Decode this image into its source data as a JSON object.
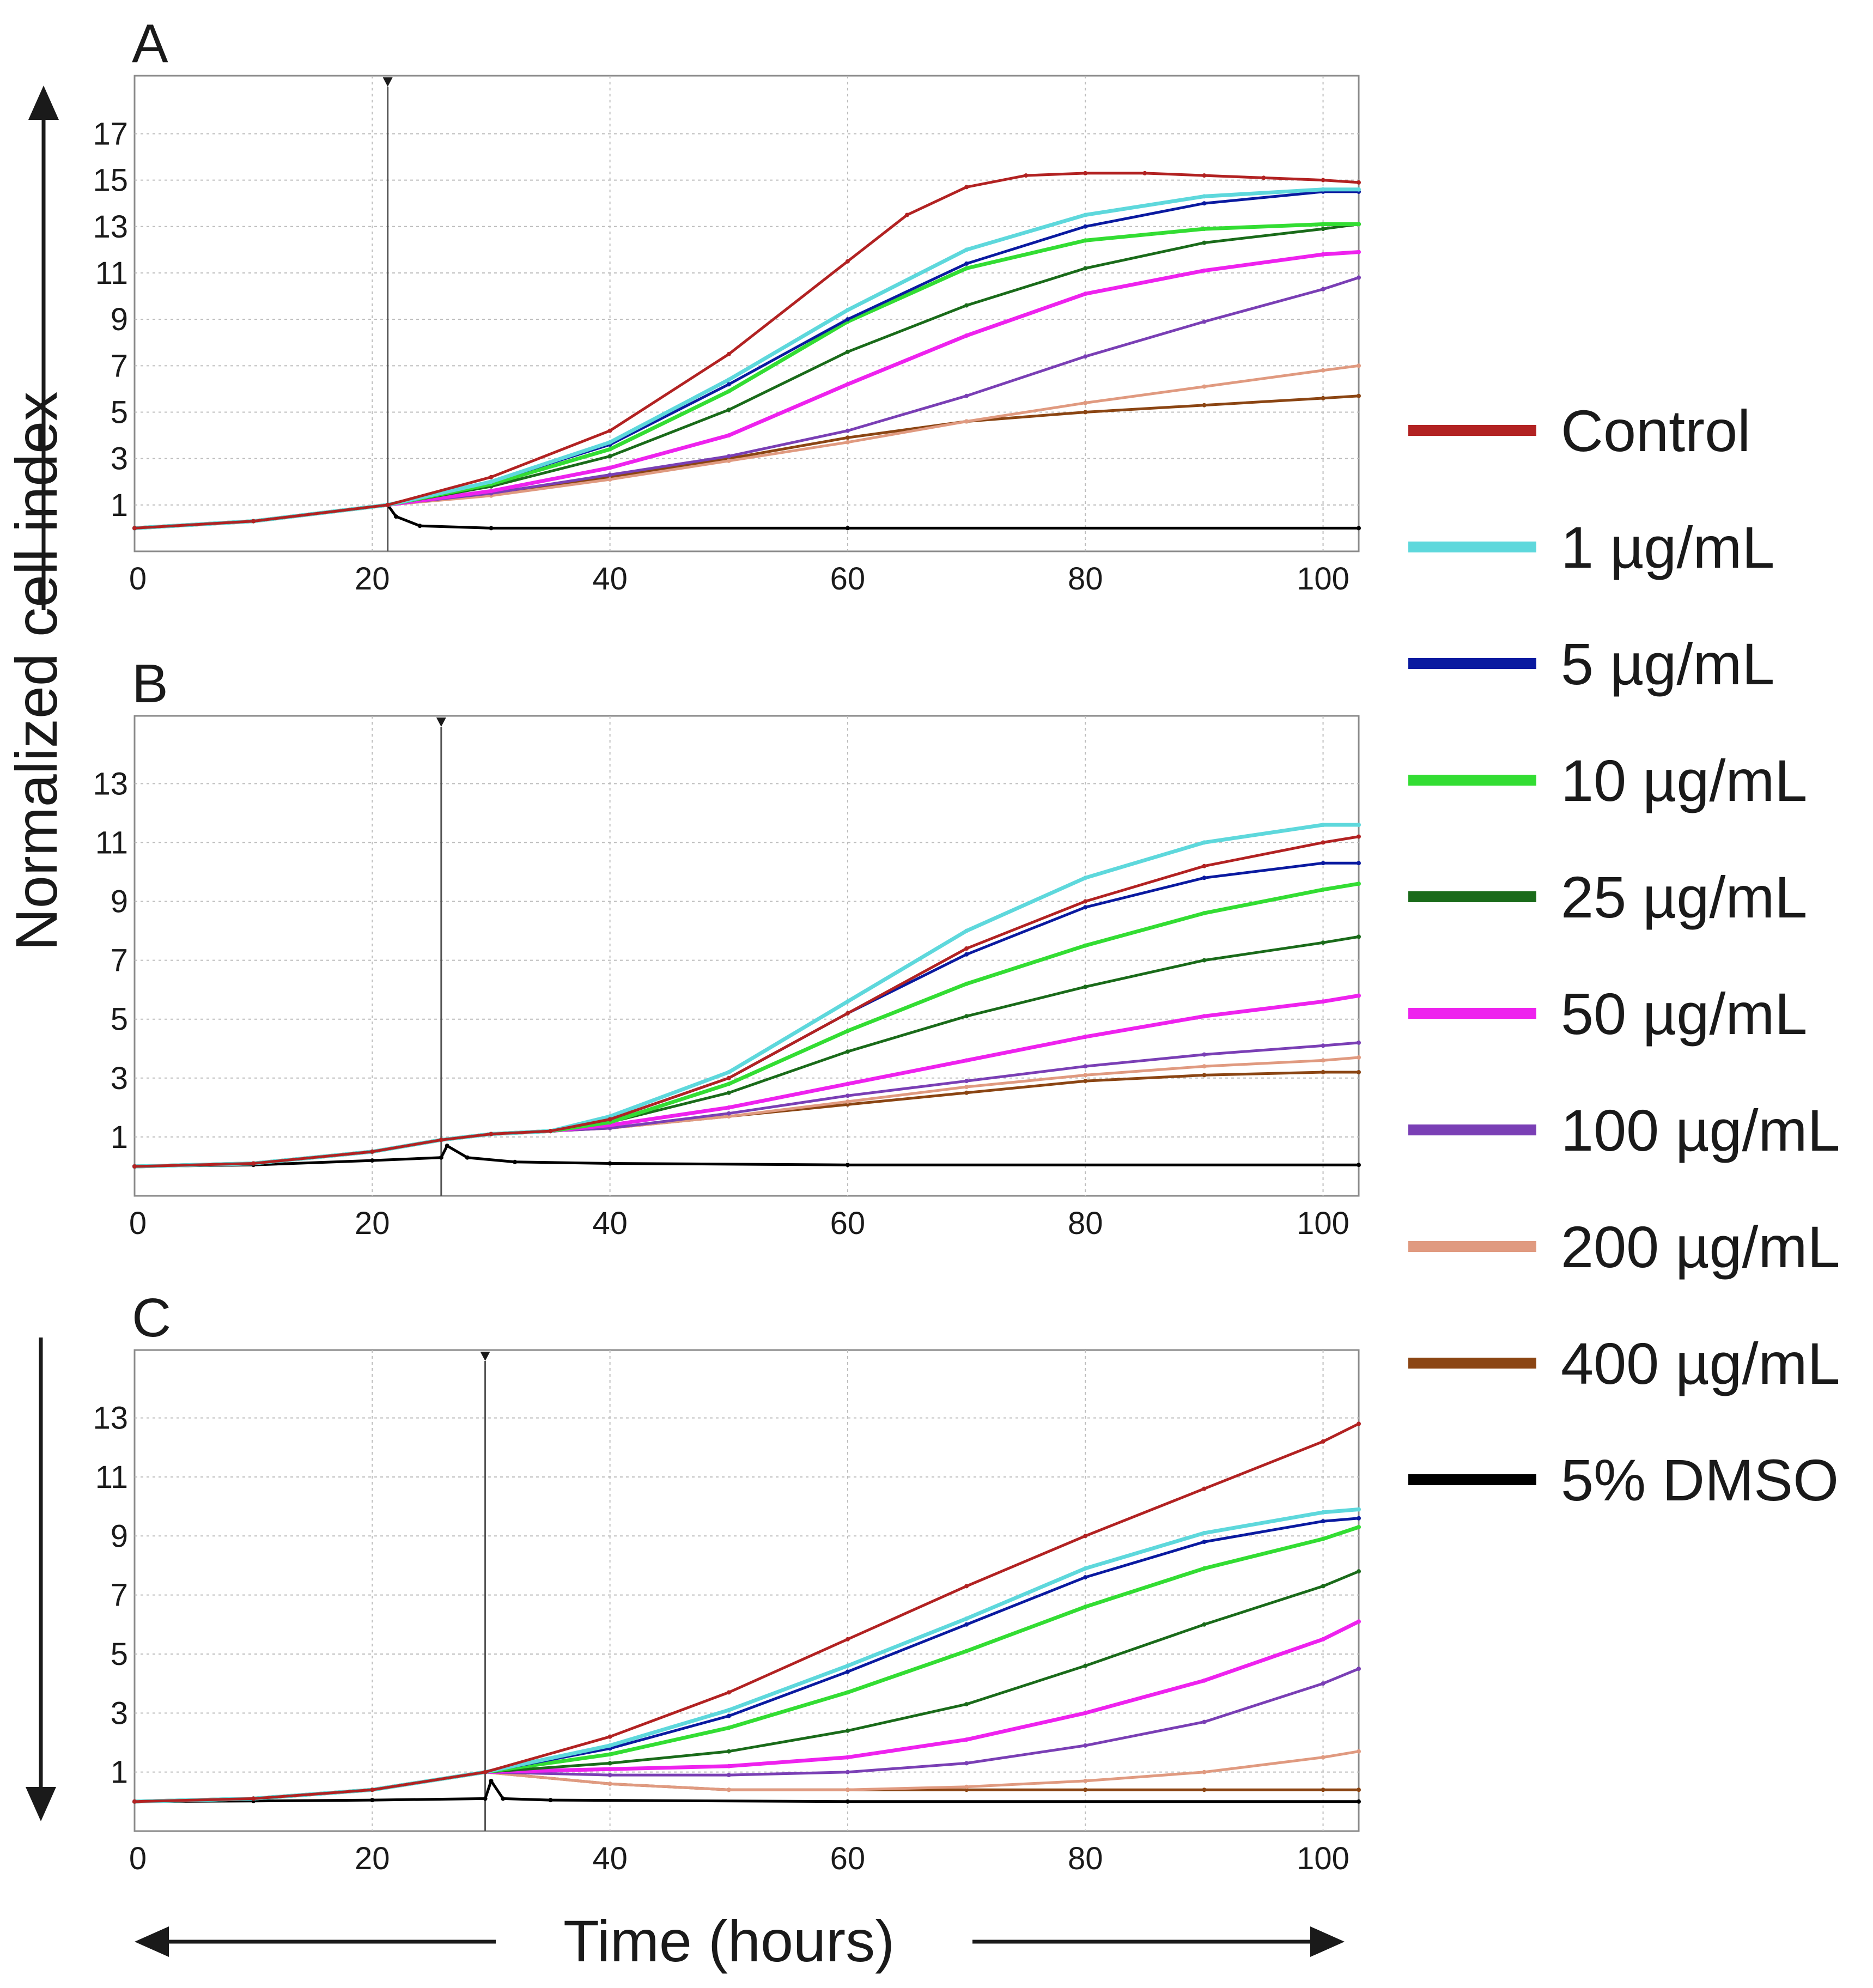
{
  "figure": {
    "ylabel": "Normalized cell index",
    "xlabel": "Time (hours)",
    "colors": {
      "control": "#b22222",
      "c1": "#5ed8dc",
      "c5": "#0a1aa0",
      "c10": "#33dd33",
      "c25": "#1a6b1a",
      "c50": "#ee22ee",
      "c100": "#7a3fb5",
      "c200": "#e09a80",
      "c400": "#8b4513",
      "dmso": "#000000"
    }
  },
  "legend": [
    {
      "key": "control",
      "label": "Control"
    },
    {
      "key": "c1",
      "label": "1 µg/mL"
    },
    {
      "key": "c5",
      "label": "5 µg/mL"
    },
    {
      "key": "c10",
      "label": "10 µg/mL"
    },
    {
      "key": "c25",
      "label": "25 µg/mL"
    },
    {
      "key": "c50",
      "label": "50 µg/mL"
    },
    {
      "key": "c100",
      "label": "100 µg/mL"
    },
    {
      "key": "c200",
      "label": "200 µg/mL"
    },
    {
      "key": "c400",
      "label": "400 µg/mL"
    },
    {
      "key": "dmso",
      "label": "5% DMSO"
    }
  ],
  "chart_data": [
    {
      "panel": "A",
      "type": "line",
      "title": "A",
      "xlabel": "Time (hours)",
      "ylabel": "Normalized cell index",
      "xlim": [
        0,
        103
      ],
      "ylim": [
        -1,
        19.5
      ],
      "xticks": [
        0,
        20,
        40,
        60,
        80,
        100
      ],
      "yticks": [
        1,
        3,
        5,
        7,
        9,
        11,
        13,
        15,
        17
      ],
      "treatment_time": 21.3,
      "grid": true,
      "series": [
        {
          "key": "control",
          "name": "Control",
          "x": [
            0,
            10,
            21.3,
            30,
            40,
            50,
            60,
            65,
            70,
            75,
            80,
            85,
            90,
            95,
            100,
            103
          ],
          "y": [
            0,
            0.3,
            1,
            2.2,
            4.2,
            7.5,
            11.5,
            13.5,
            14.7,
            15.2,
            15.3,
            15.3,
            15.2,
            15.1,
            15.0,
            14.9
          ]
        },
        {
          "key": "c1",
          "name": "1 µg/mL",
          "x": [
            0,
            10,
            21.3,
            30,
            40,
            50,
            60,
            70,
            80,
            90,
            100,
            103
          ],
          "y": [
            0,
            0.3,
            1,
            2,
            3.7,
            6.4,
            9.4,
            12,
            13.5,
            14.3,
            14.6,
            14.6
          ]
        },
        {
          "key": "c5",
          "name": "5 µg/mL",
          "x": [
            0,
            10,
            21.3,
            30,
            40,
            50,
            60,
            70,
            80,
            90,
            100,
            103
          ],
          "y": [
            0,
            0.3,
            1,
            2,
            3.6,
            6.2,
            9.0,
            11.4,
            13.0,
            14.0,
            14.5,
            14.5
          ]
        },
        {
          "key": "c10",
          "name": "10 µg/mL",
          "x": [
            0,
            10,
            21.3,
            30,
            40,
            50,
            60,
            70,
            80,
            90,
            100,
            103
          ],
          "y": [
            0,
            0.3,
            1,
            1.9,
            3.4,
            5.9,
            8.9,
            11.2,
            12.4,
            12.9,
            13.1,
            13.1
          ]
        },
        {
          "key": "c25",
          "name": "25 µg/mL",
          "x": [
            0,
            10,
            21.3,
            30,
            40,
            50,
            60,
            70,
            80,
            90,
            100,
            103
          ],
          "y": [
            0,
            0.3,
            1,
            1.8,
            3.1,
            5.1,
            7.6,
            9.6,
            11.2,
            12.3,
            12.9,
            13.1
          ]
        },
        {
          "key": "c50",
          "name": "50 µg/mL",
          "x": [
            0,
            10,
            21.3,
            30,
            40,
            50,
            60,
            70,
            80,
            90,
            100,
            103
          ],
          "y": [
            0,
            0.3,
            1,
            1.6,
            2.6,
            4.0,
            6.2,
            8.3,
            10.1,
            11.1,
            11.8,
            11.9
          ]
        },
        {
          "key": "c100",
          "name": "100 µg/mL",
          "x": [
            0,
            10,
            21.3,
            30,
            40,
            50,
            60,
            70,
            80,
            90,
            100,
            103
          ],
          "y": [
            0,
            0.3,
            1,
            1.5,
            2.3,
            3.1,
            4.2,
            5.7,
            7.4,
            8.9,
            10.3,
            10.8
          ]
        },
        {
          "key": "c200",
          "name": "200 µg/mL",
          "x": [
            0,
            10,
            21.3,
            30,
            40,
            50,
            60,
            70,
            80,
            90,
            100,
            103
          ],
          "y": [
            0,
            0.3,
            1,
            1.4,
            2.1,
            2.9,
            3.7,
            4.6,
            5.4,
            6.1,
            6.8,
            7.0
          ]
        },
        {
          "key": "c400",
          "name": "400 µg/mL",
          "x": [
            0,
            10,
            21.3,
            30,
            40,
            50,
            60,
            70,
            80,
            90,
            100,
            103
          ],
          "y": [
            0,
            0.3,
            1,
            1.5,
            2.2,
            3.0,
            3.9,
            4.6,
            5.0,
            5.3,
            5.6,
            5.7
          ]
        },
        {
          "key": "dmso",
          "name": "5% DMSO",
          "x": [
            0,
            10,
            21.3,
            22,
            24,
            30,
            60,
            103
          ],
          "y": [
            0,
            0.3,
            1,
            0.5,
            0.1,
            0,
            0,
            0
          ]
        }
      ]
    },
    {
      "panel": "B",
      "type": "line",
      "title": "B",
      "xlabel": "Time (hours)",
      "ylabel": "Normalized cell index",
      "xlim": [
        0,
        103
      ],
      "ylim": [
        -1,
        15.3
      ],
      "xticks": [
        0,
        20,
        40,
        60,
        80,
        100
      ],
      "yticks": [
        1,
        3,
        5,
        7,
        9,
        11,
        13
      ],
      "treatment_time": 25.8,
      "grid": true,
      "series": [
        {
          "key": "control",
          "name": "Control",
          "x": [
            0,
            10,
            20,
            25.8,
            30,
            35,
            40,
            50,
            60,
            70,
            80,
            90,
            100,
            103
          ],
          "y": [
            0,
            0.1,
            0.5,
            0.9,
            1.1,
            1.2,
            1.6,
            3.0,
            5.2,
            7.4,
            9.0,
            10.2,
            11.0,
            11.2
          ]
        },
        {
          "key": "c1",
          "name": "1 µg/mL",
          "x": [
            0,
            10,
            20,
            25.8,
            30,
            35,
            40,
            50,
            60,
            70,
            80,
            90,
            100,
            103
          ],
          "y": [
            0,
            0.1,
            0.5,
            0.9,
            1.1,
            1.2,
            1.7,
            3.2,
            5.6,
            8.0,
            9.8,
            11.0,
            11.6,
            11.6
          ]
        },
        {
          "key": "c5",
          "name": "5 µg/mL",
          "x": [
            0,
            10,
            20,
            25.8,
            30,
            35,
            40,
            50,
            60,
            70,
            80,
            90,
            100,
            103
          ],
          "y": [
            0,
            0.1,
            0.5,
            0.9,
            1.1,
            1.2,
            1.6,
            3.0,
            5.2,
            7.2,
            8.8,
            9.8,
            10.3,
            10.3
          ]
        },
        {
          "key": "c10",
          "name": "10 µg/mL",
          "x": [
            0,
            10,
            20,
            25.8,
            30,
            35,
            40,
            50,
            60,
            70,
            80,
            90,
            100,
            103
          ],
          "y": [
            0,
            0.1,
            0.5,
            0.9,
            1.1,
            1.2,
            1.5,
            2.8,
            4.6,
            6.2,
            7.5,
            8.6,
            9.4,
            9.6
          ]
        },
        {
          "key": "c25",
          "name": "25 µg/mL",
          "x": [
            0,
            10,
            20,
            25.8,
            30,
            35,
            40,
            50,
            60,
            70,
            80,
            90,
            100,
            103
          ],
          "y": [
            0,
            0.1,
            0.5,
            0.9,
            1.1,
            1.2,
            1.5,
            2.5,
            3.9,
            5.1,
            6.1,
            7.0,
            7.6,
            7.8
          ]
        },
        {
          "key": "c50",
          "name": "50 µg/mL",
          "x": [
            0,
            10,
            20,
            25.8,
            30,
            35,
            40,
            50,
            60,
            70,
            80,
            90,
            100,
            103
          ],
          "y": [
            0,
            0.1,
            0.5,
            0.9,
            1.1,
            1.2,
            1.4,
            2.0,
            2.8,
            3.6,
            4.4,
            5.1,
            5.6,
            5.8
          ]
        },
        {
          "key": "c100",
          "name": "100 µg/mL",
          "x": [
            0,
            10,
            20,
            25.8,
            30,
            35,
            40,
            50,
            60,
            70,
            80,
            90,
            100,
            103
          ],
          "y": [
            0,
            0.1,
            0.5,
            0.9,
            1.1,
            1.2,
            1.3,
            1.8,
            2.4,
            2.9,
            3.4,
            3.8,
            4.1,
            4.2
          ]
        },
        {
          "key": "c200",
          "name": "200 µg/mL",
          "x": [
            0,
            10,
            20,
            25.8,
            30,
            35,
            40,
            50,
            60,
            70,
            80,
            90,
            100,
            103
          ],
          "y": [
            0,
            0.1,
            0.5,
            0.9,
            1.1,
            1.2,
            1.3,
            1.7,
            2.2,
            2.7,
            3.1,
            3.4,
            3.6,
            3.7
          ]
        },
        {
          "key": "c400",
          "name": "400 µg/mL",
          "x": [
            0,
            10,
            20,
            25.8,
            30,
            35,
            40,
            50,
            60,
            70,
            80,
            90,
            100,
            103
          ],
          "y": [
            0,
            0.1,
            0.5,
            0.9,
            1.1,
            1.2,
            1.3,
            1.7,
            2.1,
            2.5,
            2.9,
            3.1,
            3.2,
            3.2
          ]
        },
        {
          "key": "dmso",
          "name": "5% DMSO",
          "x": [
            0,
            10,
            20,
            25.8,
            26.3,
            28,
            32,
            40,
            60,
            103
          ],
          "y": [
            0,
            0.05,
            0.2,
            0.3,
            0.7,
            0.3,
            0.15,
            0.1,
            0.05,
            0.05
          ]
        }
      ]
    },
    {
      "panel": "C",
      "type": "line",
      "title": "C",
      "xlabel": "Time (hours)",
      "ylabel": "Normalized cell index",
      "xlim": [
        0,
        103
      ],
      "ylim": [
        -1,
        15.3
      ],
      "xticks": [
        0,
        20,
        40,
        60,
        80,
        100
      ],
      "yticks": [
        1,
        3,
        5,
        7,
        9,
        11,
        13
      ],
      "treatment_time": 29.5,
      "grid": true,
      "series": [
        {
          "key": "control",
          "name": "Control",
          "x": [
            0,
            10,
            20,
            29.5,
            40,
            50,
            60,
            70,
            80,
            90,
            100,
            103
          ],
          "y": [
            0,
            0.1,
            0.4,
            1,
            2.2,
            3.7,
            5.5,
            7.3,
            9.0,
            10.6,
            12.2,
            12.8
          ]
        },
        {
          "key": "c1",
          "name": "1 µg/mL",
          "x": [
            0,
            10,
            20,
            29.5,
            40,
            50,
            60,
            70,
            80,
            90,
            100,
            103
          ],
          "y": [
            0,
            0.1,
            0.4,
            1,
            1.9,
            3.1,
            4.6,
            6.2,
            7.9,
            9.1,
            9.8,
            9.9
          ]
        },
        {
          "key": "c5",
          "name": "5 µg/mL",
          "x": [
            0,
            10,
            20,
            29.5,
            40,
            50,
            60,
            70,
            80,
            90,
            100,
            103
          ],
          "y": [
            0,
            0.1,
            0.4,
            1,
            1.8,
            2.9,
            4.4,
            6.0,
            7.6,
            8.8,
            9.5,
            9.6
          ]
        },
        {
          "key": "c10",
          "name": "10 µg/mL",
          "x": [
            0,
            10,
            20,
            29.5,
            40,
            50,
            60,
            70,
            80,
            90,
            100,
            103
          ],
          "y": [
            0,
            0.1,
            0.4,
            1,
            1.6,
            2.5,
            3.7,
            5.1,
            6.6,
            7.9,
            8.9,
            9.3
          ]
        },
        {
          "key": "c25",
          "name": "25 µg/mL",
          "x": [
            0,
            10,
            20,
            29.5,
            40,
            50,
            60,
            70,
            80,
            90,
            100,
            103
          ],
          "y": [
            0,
            0.1,
            0.4,
            1,
            1.3,
            1.7,
            2.4,
            3.3,
            4.6,
            6.0,
            7.3,
            7.8
          ]
        },
        {
          "key": "c50",
          "name": "50 µg/mL",
          "x": [
            0,
            10,
            20,
            29.5,
            40,
            50,
            60,
            70,
            80,
            90,
            100,
            103
          ],
          "y": [
            0,
            0.1,
            0.4,
            1,
            1.1,
            1.2,
            1.5,
            2.1,
            3.0,
            4.1,
            5.5,
            6.1
          ]
        },
        {
          "key": "c100",
          "name": "100 µg/mL",
          "x": [
            0,
            10,
            20,
            29.5,
            40,
            50,
            60,
            70,
            80,
            90,
            100,
            103
          ],
          "y": [
            0,
            0.1,
            0.4,
            1,
            0.9,
            0.9,
            1.0,
            1.3,
            1.9,
            2.7,
            4.0,
            4.5
          ]
        },
        {
          "key": "c200",
          "name": "200 µg/mL",
          "x": [
            0,
            10,
            20,
            29.5,
            40,
            50,
            60,
            70,
            80,
            90,
            100,
            103
          ],
          "y": [
            0,
            0.1,
            0.4,
            1,
            0.6,
            0.4,
            0.4,
            0.5,
            0.7,
            1.0,
            1.5,
            1.7
          ]
        },
        {
          "key": "c400",
          "name": "400 µg/mL",
          "x": [
            0,
            10,
            20,
            29.5,
            40,
            50,
            60,
            70,
            80,
            90,
            100,
            103
          ],
          "y": [
            0,
            0.1,
            0.4,
            1,
            0.6,
            0.4,
            0.4,
            0.4,
            0.4,
            0.4,
            0.4,
            0.4
          ]
        },
        {
          "key": "dmso",
          "name": "5% DMSO",
          "x": [
            0,
            10,
            20,
            29.5,
            30,
            31,
            35,
            60,
            103
          ],
          "y": [
            0,
            0.02,
            0.05,
            0.1,
            0.7,
            0.1,
            0.05,
            0,
            0
          ]
        }
      ]
    }
  ]
}
